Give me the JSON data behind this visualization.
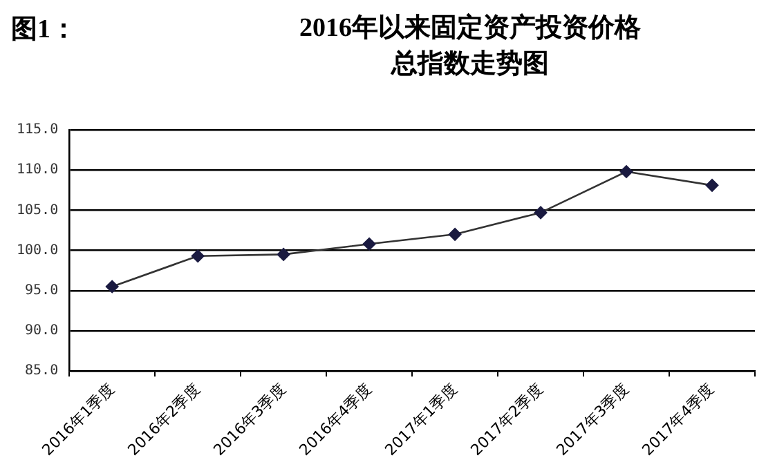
{
  "chart_data": {
    "type": "line",
    "title": "2016年以来固定资产投资价格总指数走势图",
    "annotations": [
      "图1："
    ],
    "categories": [
      "2016年1季度",
      "2016年2季度",
      "2016年3季度",
      "2016年4季度",
      "2017年1季度",
      "2017年2季度",
      "2017年3季度",
      "2017年4季度"
    ],
    "series": [
      {
        "color": "#1a1a40",
        "values": [
          95.5,
          99.3,
          99.5,
          100.8,
          102.0,
          104.7,
          109.8,
          108.1
        ]
      }
    ],
    "ylim": [
      85,
      115
    ],
    "yticks": [
      {
        "value": 85,
        "label": "85.0"
      },
      {
        "value": 90,
        "label": "90.0"
      },
      {
        "value": 95,
        "label": "95.0"
      },
      {
        "value": 100,
        "label": "100.0"
      },
      {
        "value": 105,
        "label": "105.0"
      },
      {
        "value": 110,
        "label": "110.0"
      },
      {
        "value": 115,
        "label": "115.0"
      }
    ],
    "grid": "y",
    "legend": false,
    "marker": "diamond",
    "line_style": "solid"
  }
}
